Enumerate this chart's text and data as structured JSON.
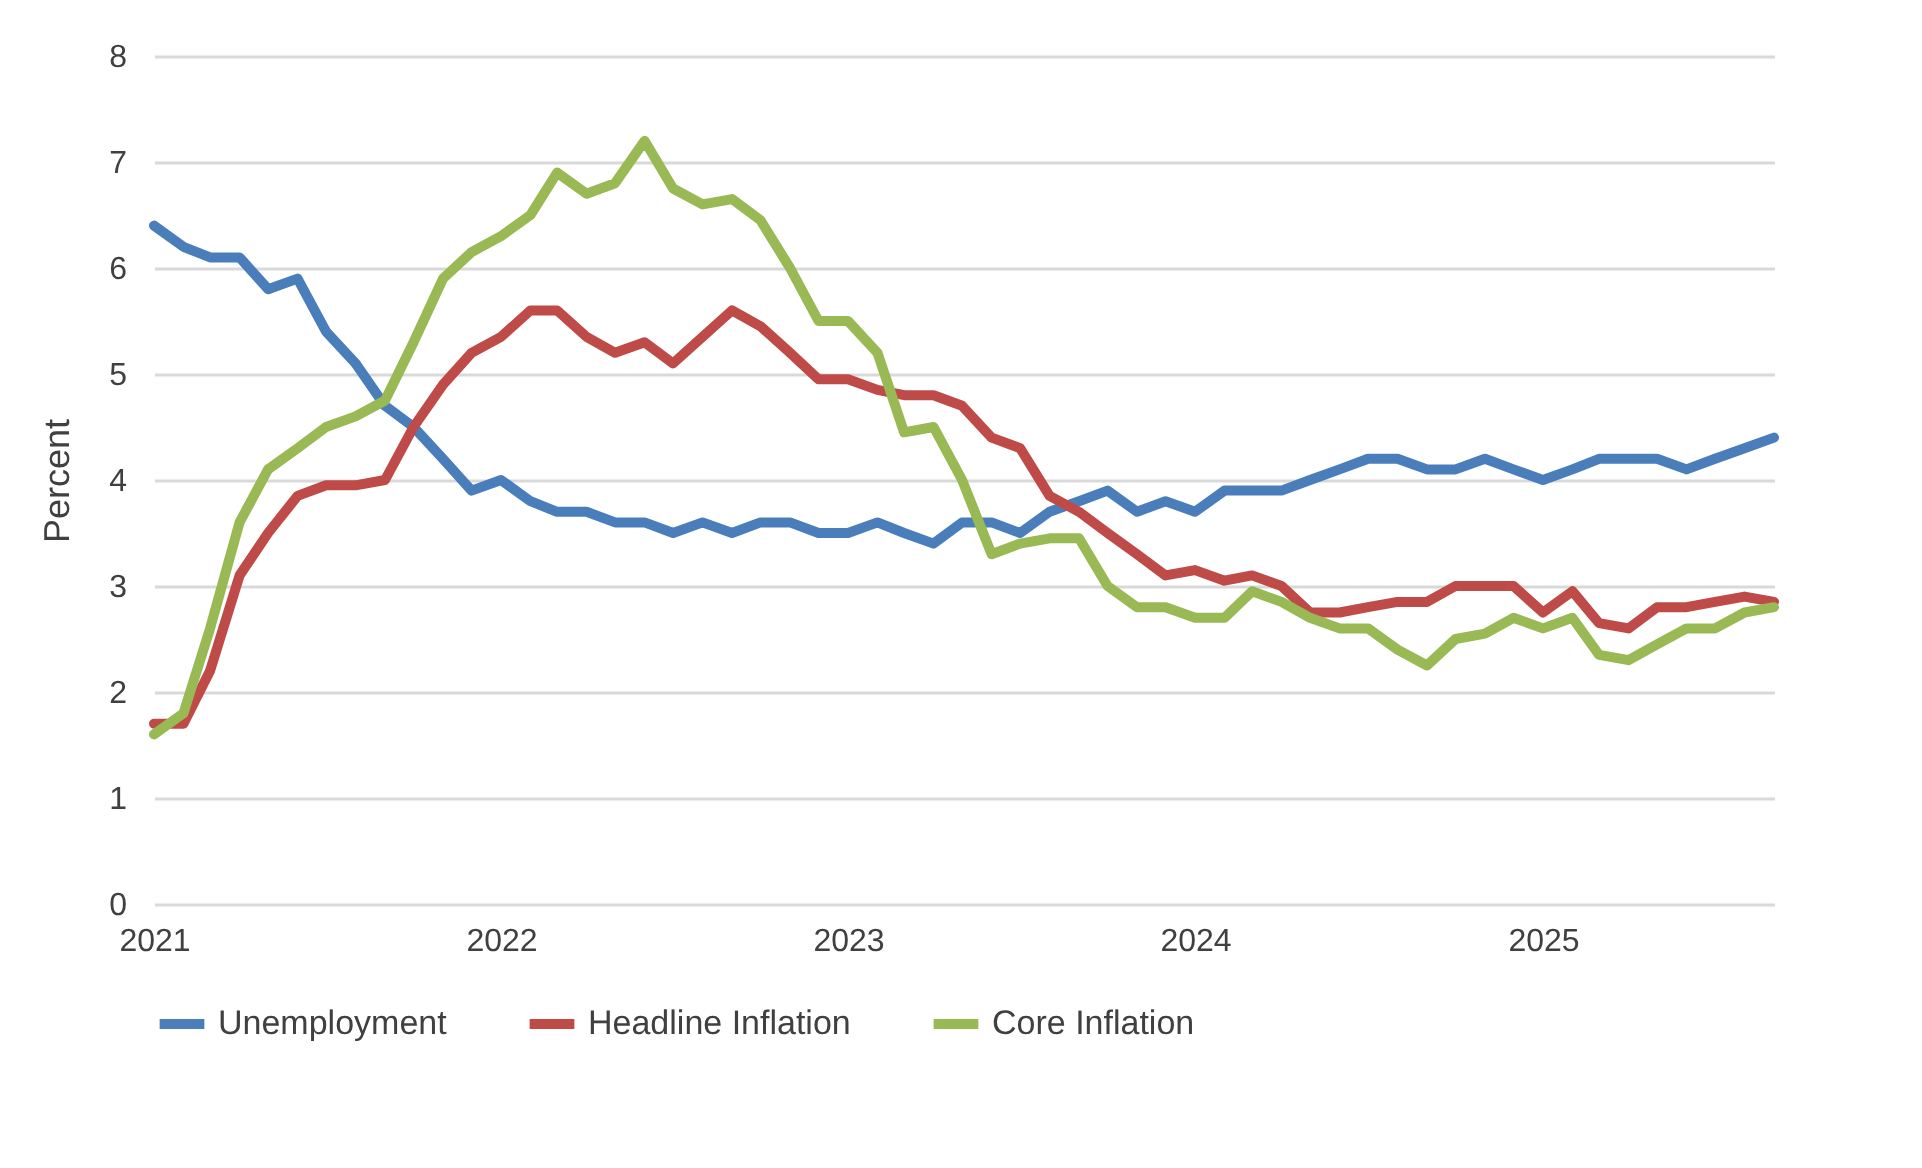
{
  "chart_data": {
    "type": "line",
    "ylabel": "Percent",
    "x": [
      "2021-01",
      "2021-02",
      "2021-03",
      "2021-04",
      "2021-05",
      "2021-06",
      "2021-07",
      "2021-08",
      "2021-09",
      "2021-10",
      "2021-11",
      "2021-12",
      "2022-01",
      "2022-02",
      "2022-03",
      "2022-04",
      "2022-05",
      "2022-06",
      "2022-07",
      "2022-08",
      "2022-09",
      "2022-10",
      "2022-11",
      "2022-12",
      "2023-01",
      "2023-02",
      "2023-03",
      "2023-04",
      "2023-05",
      "2023-06",
      "2023-07",
      "2023-08",
      "2023-09",
      "2023-10",
      "2023-11",
      "2023-12",
      "2024-01",
      "2024-02",
      "2024-03",
      "2024-04",
      "2024-05",
      "2024-06",
      "2024-07",
      "2024-08",
      "2024-09",
      "2024-10",
      "2024-11",
      "2024-12",
      "2025-01",
      "2025-02",
      "2025-03",
      "2025-04",
      "2025-05",
      "2025-06",
      "2025-07",
      "2025-08",
      "2025-09"
    ],
    "series": [
      {
        "name": "Unemployment",
        "color": "#4a7ebb",
        "values": [
          6.4,
          6.2,
          6.1,
          6.1,
          5.8,
          5.9,
          5.4,
          5.1,
          4.7,
          4.5,
          4.2,
          3.9,
          4.0,
          3.8,
          3.7,
          3.7,
          3.6,
          3.6,
          3.5,
          3.6,
          3.5,
          3.6,
          3.6,
          3.5,
          3.5,
          3.6,
          3.5,
          3.4,
          3.6,
          3.6,
          3.5,
          3.7,
          3.8,
          3.9,
          3.7,
          3.8,
          3.7,
          3.9,
          3.9,
          3.9,
          4.0,
          4.1,
          4.2,
          4.2,
          4.1,
          4.1,
          4.2,
          4.1,
          4.0,
          4.1,
          4.2,
          4.2,
          4.2,
          4.1,
          4.2,
          4.3,
          4.4
        ]
      },
      {
        "name": "Headline Inflation",
        "color": "#be4b48",
        "values": [
          1.7,
          1.7,
          2.2,
          3.1,
          3.5,
          3.85,
          3.95,
          3.95,
          4.0,
          4.5,
          4.9,
          5.2,
          5.35,
          5.6,
          5.6,
          5.35,
          5.2,
          5.3,
          5.1,
          5.35,
          5.6,
          5.45,
          5.2,
          4.95,
          4.95,
          4.85,
          4.8,
          4.8,
          4.7,
          4.4,
          4.3,
          3.85,
          3.7,
          3.5,
          3.3,
          3.1,
          3.15,
          3.05,
          3.1,
          3.0,
          2.75,
          2.75,
          2.8,
          2.85,
          2.85,
          3.0,
          3.0,
          3.0,
          2.75,
          2.95,
          2.65,
          2.6,
          2.8,
          2.8,
          2.85,
          2.9,
          2.85
        ]
      },
      {
        "name": "Core Inflation",
        "color": "#98b954",
        "values": [
          1.6,
          1.8,
          2.6,
          3.6,
          4.1,
          4.3,
          4.5,
          4.6,
          4.75,
          5.3,
          5.9,
          6.15,
          6.3,
          6.5,
          6.9,
          6.7,
          6.8,
          7.2,
          6.75,
          6.6,
          6.65,
          6.45,
          6.0,
          5.5,
          5.5,
          5.2,
          4.45,
          4.5,
          4.0,
          3.3,
          3.4,
          3.45,
          3.45,
          3.0,
          2.8,
          2.8,
          2.7,
          2.7,
          2.95,
          2.85,
          2.7,
          2.6,
          2.6,
          2.4,
          2.25,
          2.5,
          2.55,
          2.7,
          2.6,
          2.7,
          2.35,
          2.3,
          2.45,
          2.6,
          2.6,
          2.75,
          2.8
        ]
      }
    ],
    "xlim": [
      "2021-01",
      "2025-09"
    ],
    "xticks": [
      {
        "value": "2021-01",
        "label": "2021"
      },
      {
        "value": "2022-01",
        "label": "2022"
      },
      {
        "value": "2023-01",
        "label": "2023"
      },
      {
        "value": "2024-01",
        "label": "2024"
      },
      {
        "value": "2025-01",
        "label": "2025"
      }
    ],
    "ylim": [
      0,
      8
    ],
    "yticks": [
      0,
      1,
      2,
      3,
      4,
      5,
      6,
      7,
      8
    ],
    "grid": "y",
    "legend": "bottom",
    "marker": "none",
    "line_style": "solid"
  }
}
